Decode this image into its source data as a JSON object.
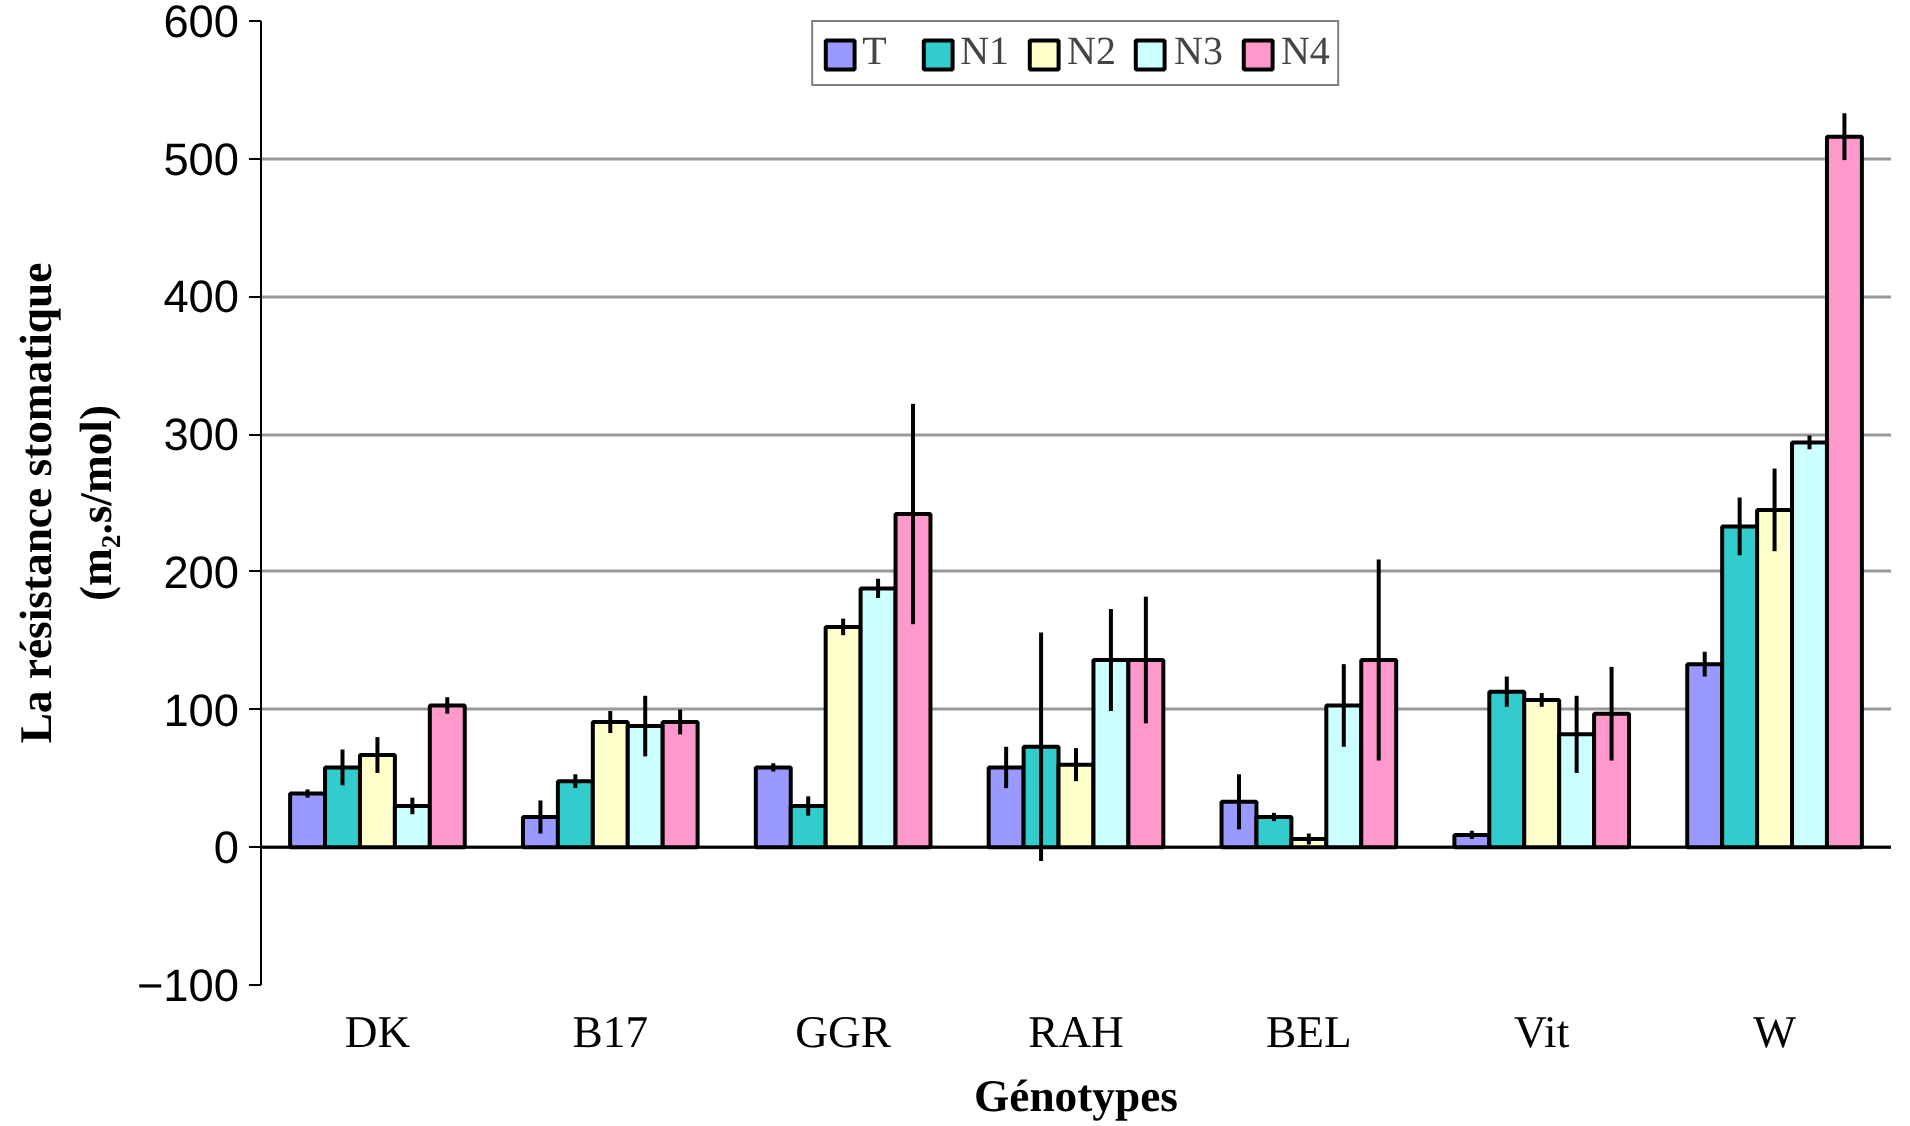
{
  "chart_data": {
    "type": "bar",
    "xlabel": "Génotypes",
    "ylabel": "La résistance stomatique\n(m₂.s/mol)",
    "categories": [
      "DK",
      "B17",
      "GGR",
      "RAH",
      "BEL",
      "Vit",
      "W"
    ],
    "series": [
      {
        "name": "T",
        "color": "#9999ff",
        "values": [
          39,
          22,
          58,
          58,
          33,
          9,
          133
        ],
        "errors": [
          3,
          12,
          3,
          15,
          20,
          3,
          9
        ]
      },
      {
        "name": "N1",
        "color": "#33cccc",
        "values": [
          58,
          48,
          30,
          73,
          22,
          113,
          233
        ],
        "errors": [
          13,
          5,
          7,
          83,
          3,
          11,
          21
        ]
      },
      {
        "name": "N2",
        "color": "#ffffcc",
        "values": [
          67,
          91,
          160,
          60,
          6,
          107,
          245
        ],
        "errors": [
          13,
          8,
          6,
          12,
          4,
          5,
          30
        ]
      },
      {
        "name": "N3",
        "color": "#ccffff",
        "values": [
          30,
          88,
          188,
          136,
          103,
          82,
          294
        ],
        "errors": [
          6,
          22,
          7,
          37,
          30,
          28,
          5
        ]
      },
      {
        "name": "N4",
        "color": "#ff99cc",
        "values": [
          103,
          91,
          242,
          136,
          136,
          97,
          516
        ],
        "errors": [
          6,
          9,
          80,
          46,
          73,
          34,
          17
        ]
      }
    ],
    "ylim": [
      -100,
      600
    ],
    "yticks": [
      -100,
      0,
      100,
      200,
      300,
      400,
      500,
      600
    ],
    "grid": "y",
    "legend": "top"
  }
}
